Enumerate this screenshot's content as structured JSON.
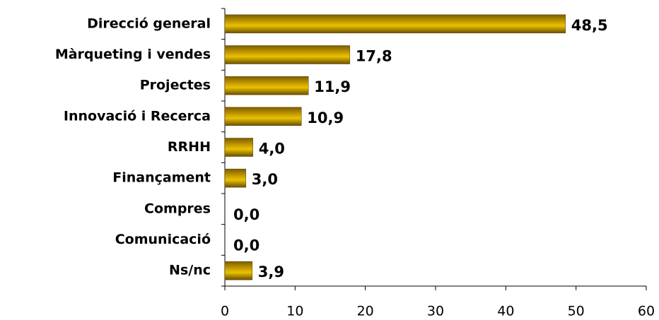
{
  "chart_data": {
    "type": "bar",
    "orientation": "horizontal",
    "categories": [
      "Direcció general",
      "Màrqueting i vendes",
      "Projectes",
      "Innovació i Recerca",
      "RRHH",
      "Finançament",
      "Compres",
      "Comunicació",
      "Ns/nc"
    ],
    "values": [
      48.5,
      17.8,
      11.9,
      10.9,
      4.0,
      3.0,
      0.0,
      0.0,
      3.9
    ],
    "value_labels": [
      "48,5",
      "17,8",
      "11,9",
      "10,9",
      "4,0",
      "3,0",
      "0,0",
      "0,0",
      "3,9"
    ],
    "color": "#d4a800",
    "xlim": [
      0,
      60
    ],
    "xticks": [
      0,
      10,
      20,
      30,
      40,
      50,
      60
    ],
    "grid": false
  }
}
